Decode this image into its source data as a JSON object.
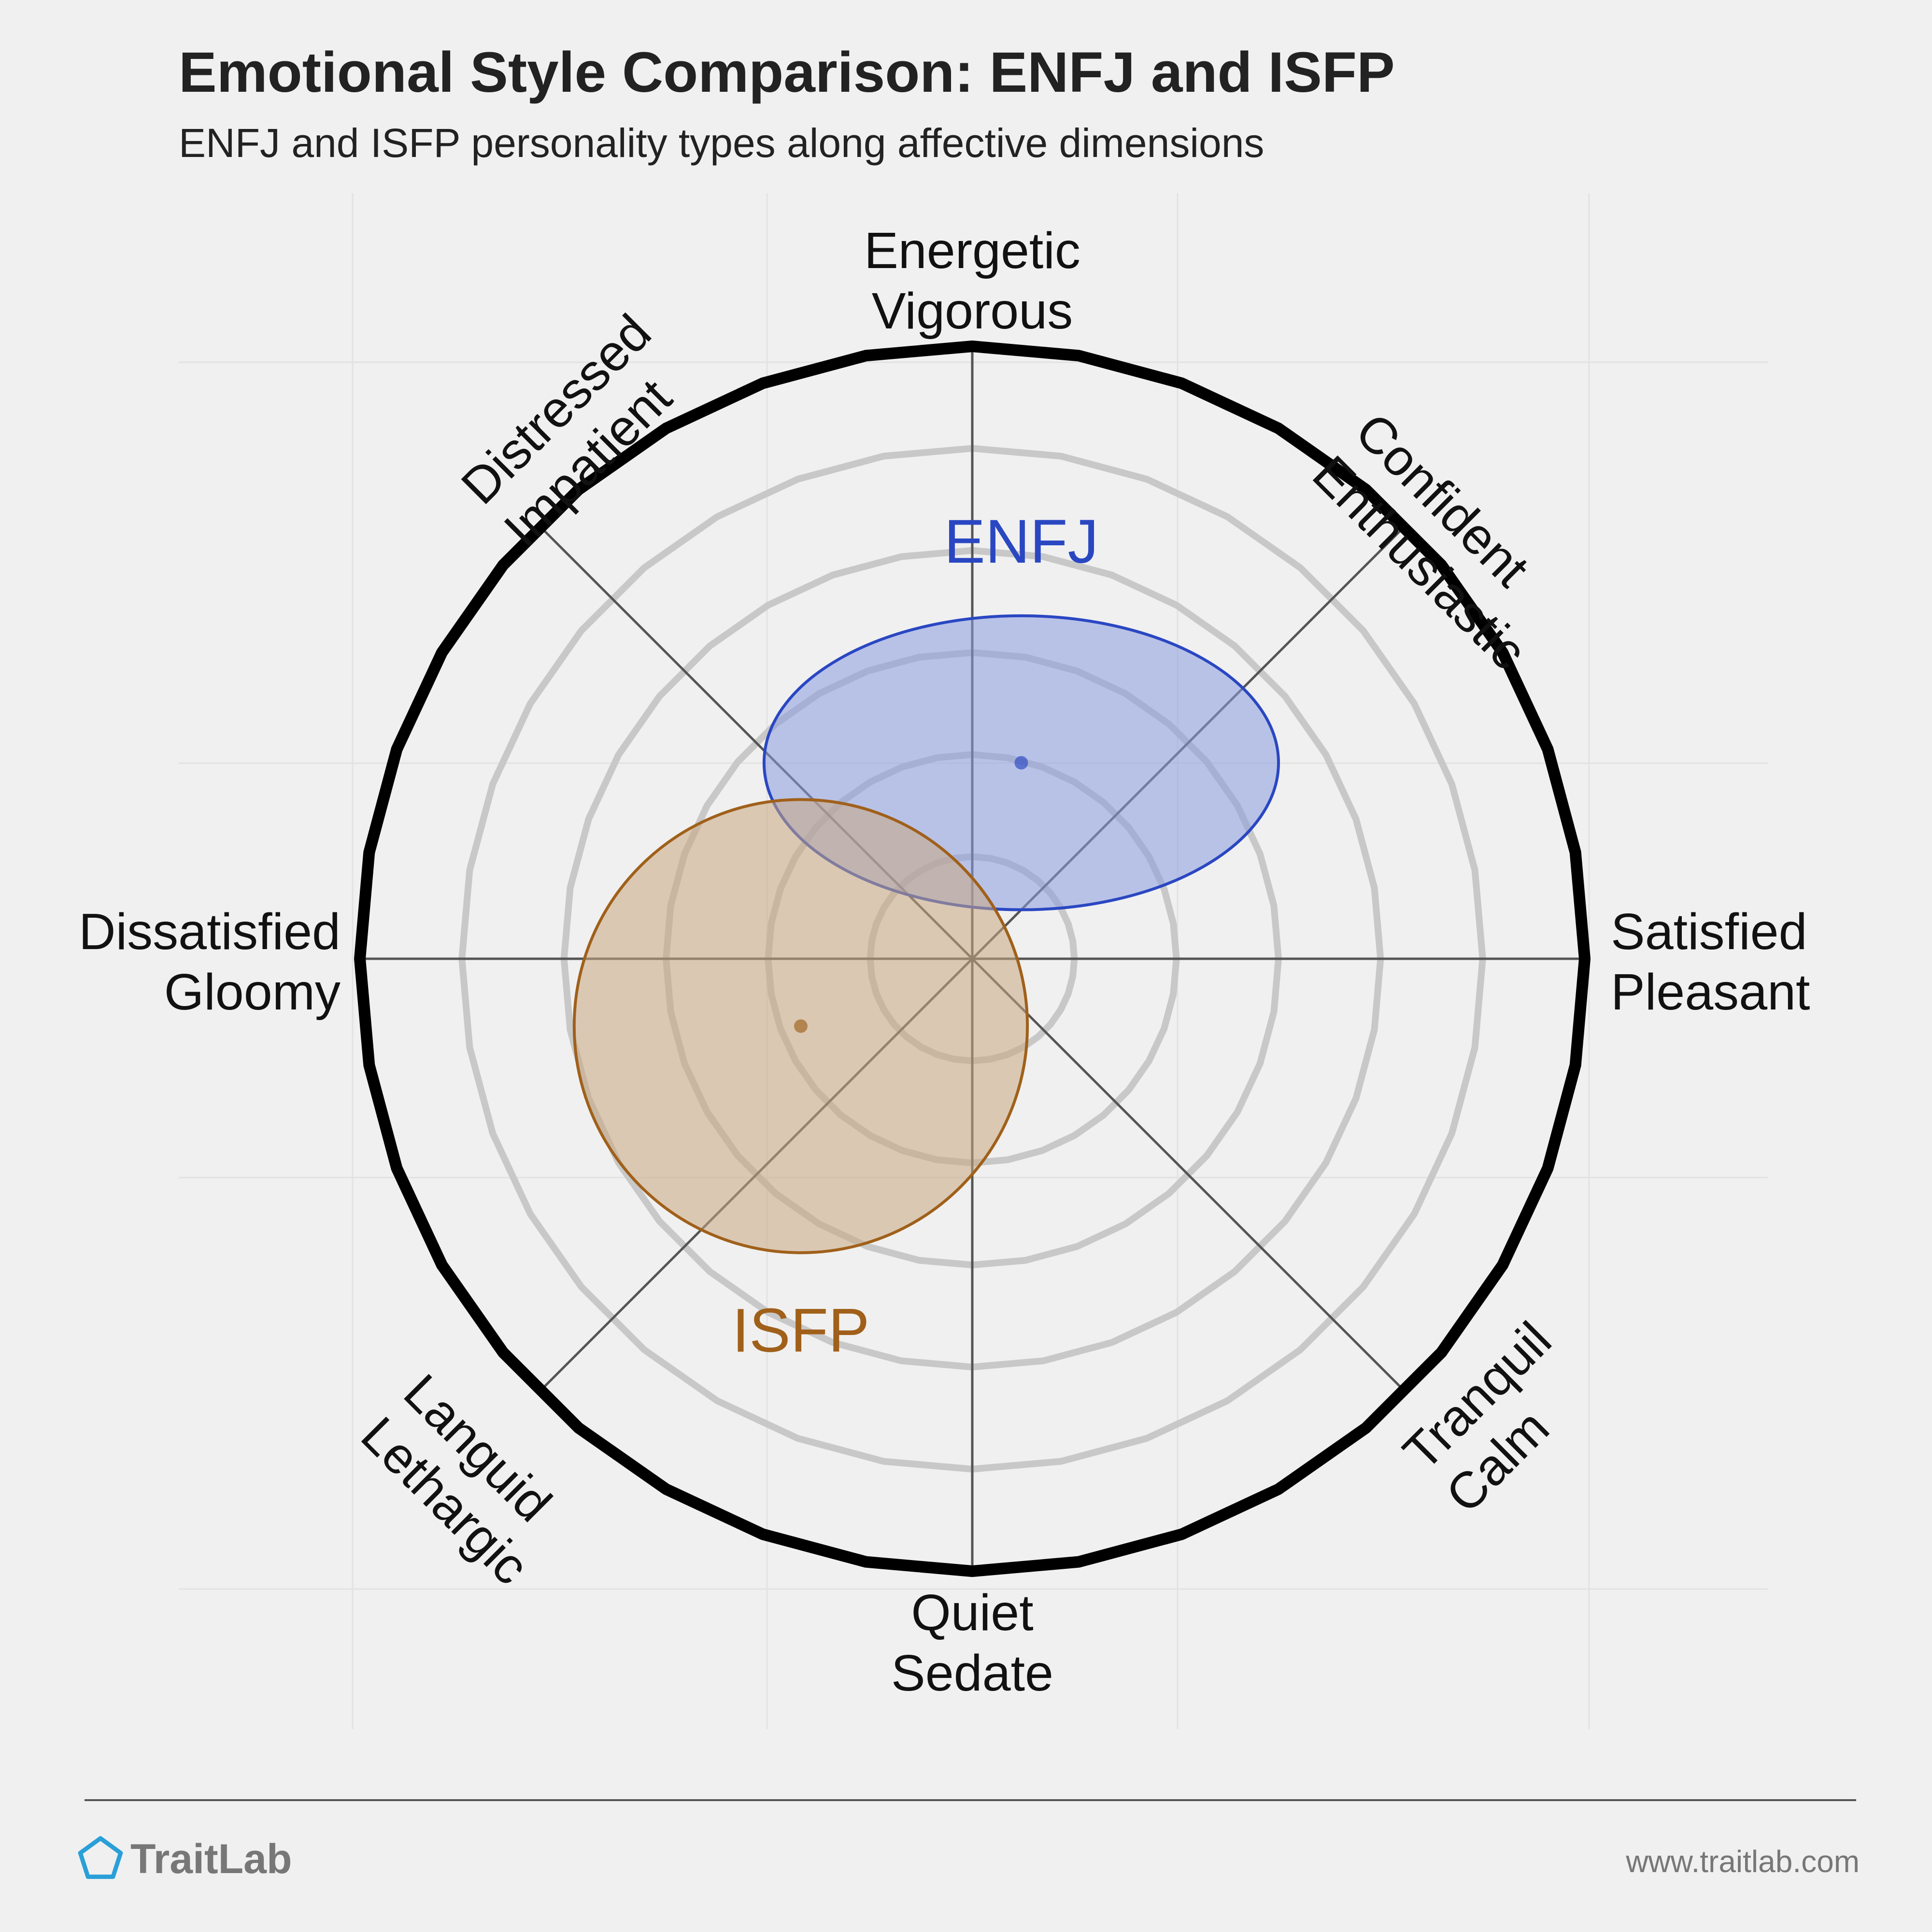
{
  "chart_data": {
    "type": "scatter",
    "title": "Emotional Style Comparison: ENFJ and ISFP",
    "subtitle": "ENFJ and ISFP personality types along affective dimensions",
    "axes": {
      "top": [
        "Energetic",
        "Vigorous"
      ],
      "top_right": [
        "Confident",
        "Enthusiastic"
      ],
      "right": [
        "Satisfied",
        "Pleasant"
      ],
      "bottom_right": [
        "Tranquil",
        "Calm"
      ],
      "bottom": [
        "Quiet",
        "Sedate"
      ],
      "bottom_left": [
        "Languid",
        "Lethargic"
      ],
      "left": [
        "Dissatisfied",
        "Gloomy"
      ],
      "top_left": [
        "Distressed",
        "Impatient"
      ]
    },
    "xlim": [
      -1,
      1
    ],
    "ylim": [
      -1,
      1
    ],
    "rings": 6,
    "series": [
      {
        "name": "ENFJ",
        "x": 0.08,
        "y": 0.32,
        "rx": 0.42,
        "ry": 0.24,
        "color": "#2a47c2",
        "fill": "#8a9ce0"
      },
      {
        "name": "ISFP",
        "x": -0.28,
        "y": -0.11,
        "rx": 0.37,
        "ry": 0.37,
        "color": "#a0601a",
        "fill": "#c9a882"
      }
    ]
  },
  "footer": {
    "brand": "TraitLab",
    "url": "www.traitlab.com",
    "logo_icon": "pentagon-icon",
    "brand_color": "#2a9fd8"
  }
}
